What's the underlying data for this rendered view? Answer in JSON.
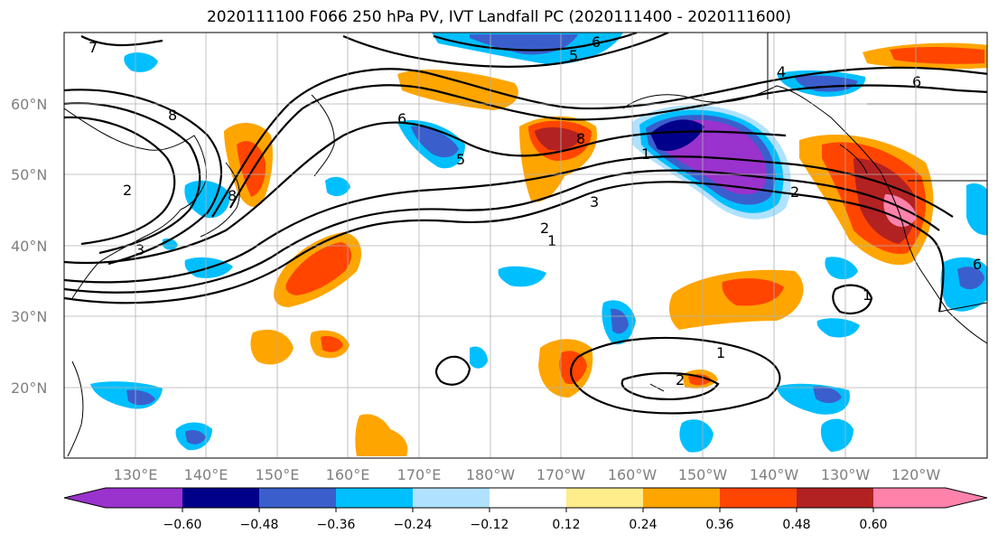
{
  "title": "2020111100 F066 250 hPa PV, IVT Landfall PC (2020111400 - 2020111600)",
  "lat_labels": [
    "60°N",
    "50°N",
    "40°N",
    "30°N",
    "20°N"
  ],
  "lon_labels": [
    "130°E",
    "140°E",
    "150°E",
    "160°E",
    "170°E",
    "180°W",
    "170°W",
    "160°W",
    "150°W",
    "140°W",
    "130°W",
    "120°W"
  ],
  "colorbar": {
    "tick_labels": [
      "−0.60",
      "−0.48",
      "−0.36",
      "−0.24",
      "−0.12",
      "0.12",
      "0.24",
      "0.36",
      "0.48",
      "0.60"
    ],
    "colors": [
      "#9a32cd",
      "#00008b",
      "#3a5fcd",
      "#00bfff",
      "#b0e2ff",
      "#ffffff",
      "#ffec8b",
      "#ffa500",
      "#ff4500",
      "#b22222",
      "#ff82ab"
    ]
  },
  "contour_labels": [
    "7",
    "8",
    "2",
    "3",
    "8",
    "6",
    "5",
    "5",
    "4",
    "6",
    "6",
    "8",
    "1",
    "3",
    "2",
    "1",
    "2",
    "1",
    "2",
    "1",
    "6"
  ]
}
